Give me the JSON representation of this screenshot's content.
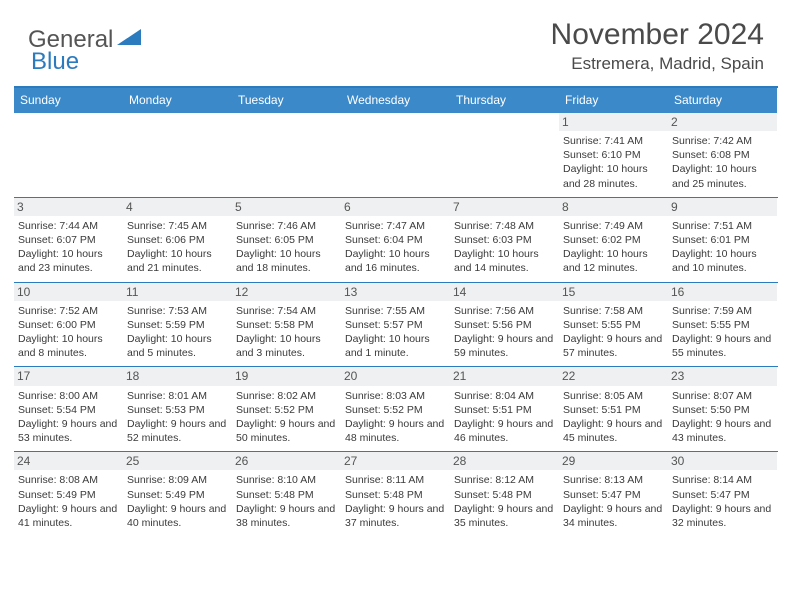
{
  "brand": {
    "part1": "General",
    "part2": "Blue"
  },
  "title": "November 2024",
  "location": "Estremera, Madrid, Spain",
  "colors": {
    "header_bg": "#3b89c9",
    "border": "#2d7bbf",
    "daynum_bg": "#eef0f1",
    "text": "#3a3a3a"
  },
  "day_labels": [
    "Sunday",
    "Monday",
    "Tuesday",
    "Wednesday",
    "Thursday",
    "Friday",
    "Saturday"
  ],
  "weeks": [
    [
      {
        "n": "",
        "sr": "",
        "ss": "",
        "dl": ""
      },
      {
        "n": "",
        "sr": "",
        "ss": "",
        "dl": ""
      },
      {
        "n": "",
        "sr": "",
        "ss": "",
        "dl": ""
      },
      {
        "n": "",
        "sr": "",
        "ss": "",
        "dl": ""
      },
      {
        "n": "",
        "sr": "",
        "ss": "",
        "dl": ""
      },
      {
        "n": "1",
        "sr": "Sunrise: 7:41 AM",
        "ss": "Sunset: 6:10 PM",
        "dl": "Daylight: 10 hours and 28 minutes."
      },
      {
        "n": "2",
        "sr": "Sunrise: 7:42 AM",
        "ss": "Sunset: 6:08 PM",
        "dl": "Daylight: 10 hours and 25 minutes."
      }
    ],
    [
      {
        "n": "3",
        "sr": "Sunrise: 7:44 AM",
        "ss": "Sunset: 6:07 PM",
        "dl": "Daylight: 10 hours and 23 minutes."
      },
      {
        "n": "4",
        "sr": "Sunrise: 7:45 AM",
        "ss": "Sunset: 6:06 PM",
        "dl": "Daylight: 10 hours and 21 minutes."
      },
      {
        "n": "5",
        "sr": "Sunrise: 7:46 AM",
        "ss": "Sunset: 6:05 PM",
        "dl": "Daylight: 10 hours and 18 minutes."
      },
      {
        "n": "6",
        "sr": "Sunrise: 7:47 AM",
        "ss": "Sunset: 6:04 PM",
        "dl": "Daylight: 10 hours and 16 minutes."
      },
      {
        "n": "7",
        "sr": "Sunrise: 7:48 AM",
        "ss": "Sunset: 6:03 PM",
        "dl": "Daylight: 10 hours and 14 minutes."
      },
      {
        "n": "8",
        "sr": "Sunrise: 7:49 AM",
        "ss": "Sunset: 6:02 PM",
        "dl": "Daylight: 10 hours and 12 minutes."
      },
      {
        "n": "9",
        "sr": "Sunrise: 7:51 AM",
        "ss": "Sunset: 6:01 PM",
        "dl": "Daylight: 10 hours and 10 minutes."
      }
    ],
    [
      {
        "n": "10",
        "sr": "Sunrise: 7:52 AM",
        "ss": "Sunset: 6:00 PM",
        "dl": "Daylight: 10 hours and 8 minutes."
      },
      {
        "n": "11",
        "sr": "Sunrise: 7:53 AM",
        "ss": "Sunset: 5:59 PM",
        "dl": "Daylight: 10 hours and 5 minutes."
      },
      {
        "n": "12",
        "sr": "Sunrise: 7:54 AM",
        "ss": "Sunset: 5:58 PM",
        "dl": "Daylight: 10 hours and 3 minutes."
      },
      {
        "n": "13",
        "sr": "Sunrise: 7:55 AM",
        "ss": "Sunset: 5:57 PM",
        "dl": "Daylight: 10 hours and 1 minute."
      },
      {
        "n": "14",
        "sr": "Sunrise: 7:56 AM",
        "ss": "Sunset: 5:56 PM",
        "dl": "Daylight: 9 hours and 59 minutes."
      },
      {
        "n": "15",
        "sr": "Sunrise: 7:58 AM",
        "ss": "Sunset: 5:55 PM",
        "dl": "Daylight: 9 hours and 57 minutes."
      },
      {
        "n": "16",
        "sr": "Sunrise: 7:59 AM",
        "ss": "Sunset: 5:55 PM",
        "dl": "Daylight: 9 hours and 55 minutes."
      }
    ],
    [
      {
        "n": "17",
        "sr": "Sunrise: 8:00 AM",
        "ss": "Sunset: 5:54 PM",
        "dl": "Daylight: 9 hours and 53 minutes."
      },
      {
        "n": "18",
        "sr": "Sunrise: 8:01 AM",
        "ss": "Sunset: 5:53 PM",
        "dl": "Daylight: 9 hours and 52 minutes."
      },
      {
        "n": "19",
        "sr": "Sunrise: 8:02 AM",
        "ss": "Sunset: 5:52 PM",
        "dl": "Daylight: 9 hours and 50 minutes."
      },
      {
        "n": "20",
        "sr": "Sunrise: 8:03 AM",
        "ss": "Sunset: 5:52 PM",
        "dl": "Daylight: 9 hours and 48 minutes."
      },
      {
        "n": "21",
        "sr": "Sunrise: 8:04 AM",
        "ss": "Sunset: 5:51 PM",
        "dl": "Daylight: 9 hours and 46 minutes."
      },
      {
        "n": "22",
        "sr": "Sunrise: 8:05 AM",
        "ss": "Sunset: 5:51 PM",
        "dl": "Daylight: 9 hours and 45 minutes."
      },
      {
        "n": "23",
        "sr": "Sunrise: 8:07 AM",
        "ss": "Sunset: 5:50 PM",
        "dl": "Daylight: 9 hours and 43 minutes."
      }
    ],
    [
      {
        "n": "24",
        "sr": "Sunrise: 8:08 AM",
        "ss": "Sunset: 5:49 PM",
        "dl": "Daylight: 9 hours and 41 minutes."
      },
      {
        "n": "25",
        "sr": "Sunrise: 8:09 AM",
        "ss": "Sunset: 5:49 PM",
        "dl": "Daylight: 9 hours and 40 minutes."
      },
      {
        "n": "26",
        "sr": "Sunrise: 8:10 AM",
        "ss": "Sunset: 5:48 PM",
        "dl": "Daylight: 9 hours and 38 minutes."
      },
      {
        "n": "27",
        "sr": "Sunrise: 8:11 AM",
        "ss": "Sunset: 5:48 PM",
        "dl": "Daylight: 9 hours and 37 minutes."
      },
      {
        "n": "28",
        "sr": "Sunrise: 8:12 AM",
        "ss": "Sunset: 5:48 PM",
        "dl": "Daylight: 9 hours and 35 minutes."
      },
      {
        "n": "29",
        "sr": "Sunrise: 8:13 AM",
        "ss": "Sunset: 5:47 PM",
        "dl": "Daylight: 9 hours and 34 minutes."
      },
      {
        "n": "30",
        "sr": "Sunrise: 8:14 AM",
        "ss": "Sunset: 5:47 PM",
        "dl": "Daylight: 9 hours and 32 minutes."
      }
    ]
  ]
}
